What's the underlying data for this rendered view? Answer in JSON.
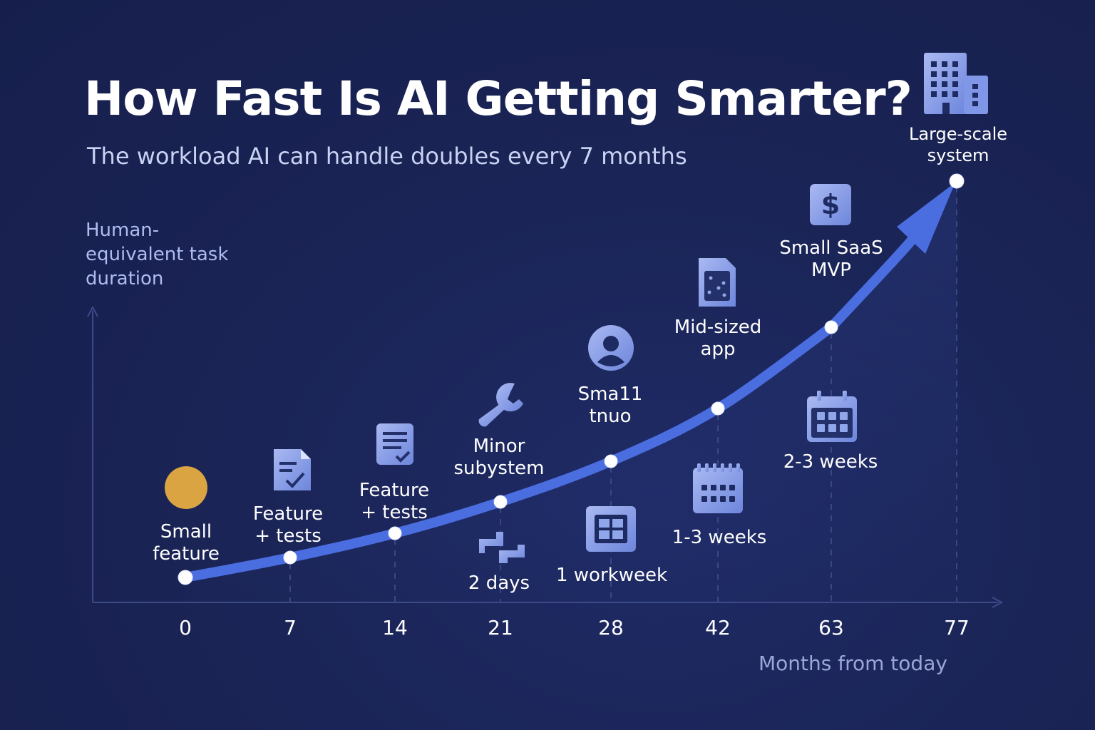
{
  "header": {
    "title": "How Fast Is AI Getting Smarter?",
    "subtitle": "The workload AI can handle doubles every 7 months"
  },
  "chart_data": {
    "type": "line",
    "title": "How Fast Is AI Getting Smarter?",
    "subtitle": "The workload AI can handle doubles every 7 months",
    "xlabel": "Months from today",
    "ylabel": "Human-equivalent task duration",
    "x": [
      0,
      7,
      14,
      21,
      28,
      42,
      63,
      77
    ],
    "x_tick_labels": [
      "0",
      "7",
      "14",
      "21",
      "28",
      "42",
      "63",
      "77"
    ],
    "milestones": [
      {
        "label": "Small feature",
        "icon": "gold-circle-icon",
        "duration_label": ""
      },
      {
        "label": "Feature + tests",
        "icon": "document-check-icon",
        "duration_label": ""
      },
      {
        "label": "Feature + tests",
        "icon": "document-list-icon",
        "duration_label": ""
      },
      {
        "label": "Minor subystem",
        "icon": "wrench-icon",
        "duration_label": "2 days",
        "duration_icon": "puzzle-icon"
      },
      {
        "label": "Sma11 tnuo",
        "icon": "user-icon",
        "duration_label": "1 workweek",
        "duration_icon": "grid-window-icon"
      },
      {
        "label": "Mid-sized app",
        "icon": "app-document-icon",
        "duration_label": "1-3 weeks",
        "duration_icon": "calendar-icon"
      },
      {
        "label": "Small SaaS MVP",
        "icon": "dollar-icon",
        "duration_label": "2-3 weeks",
        "duration_icon": "calendar-icon"
      },
      {
        "label": "Large-scale system",
        "icon": "buildings-icon",
        "duration_label": ""
      }
    ],
    "grid": false,
    "colors": {
      "curve": "#4a6de0",
      "point": "#ffffff",
      "icon": "#8fa6ea",
      "axis": "#3d4a88",
      "gold": "#d9a441"
    }
  }
}
